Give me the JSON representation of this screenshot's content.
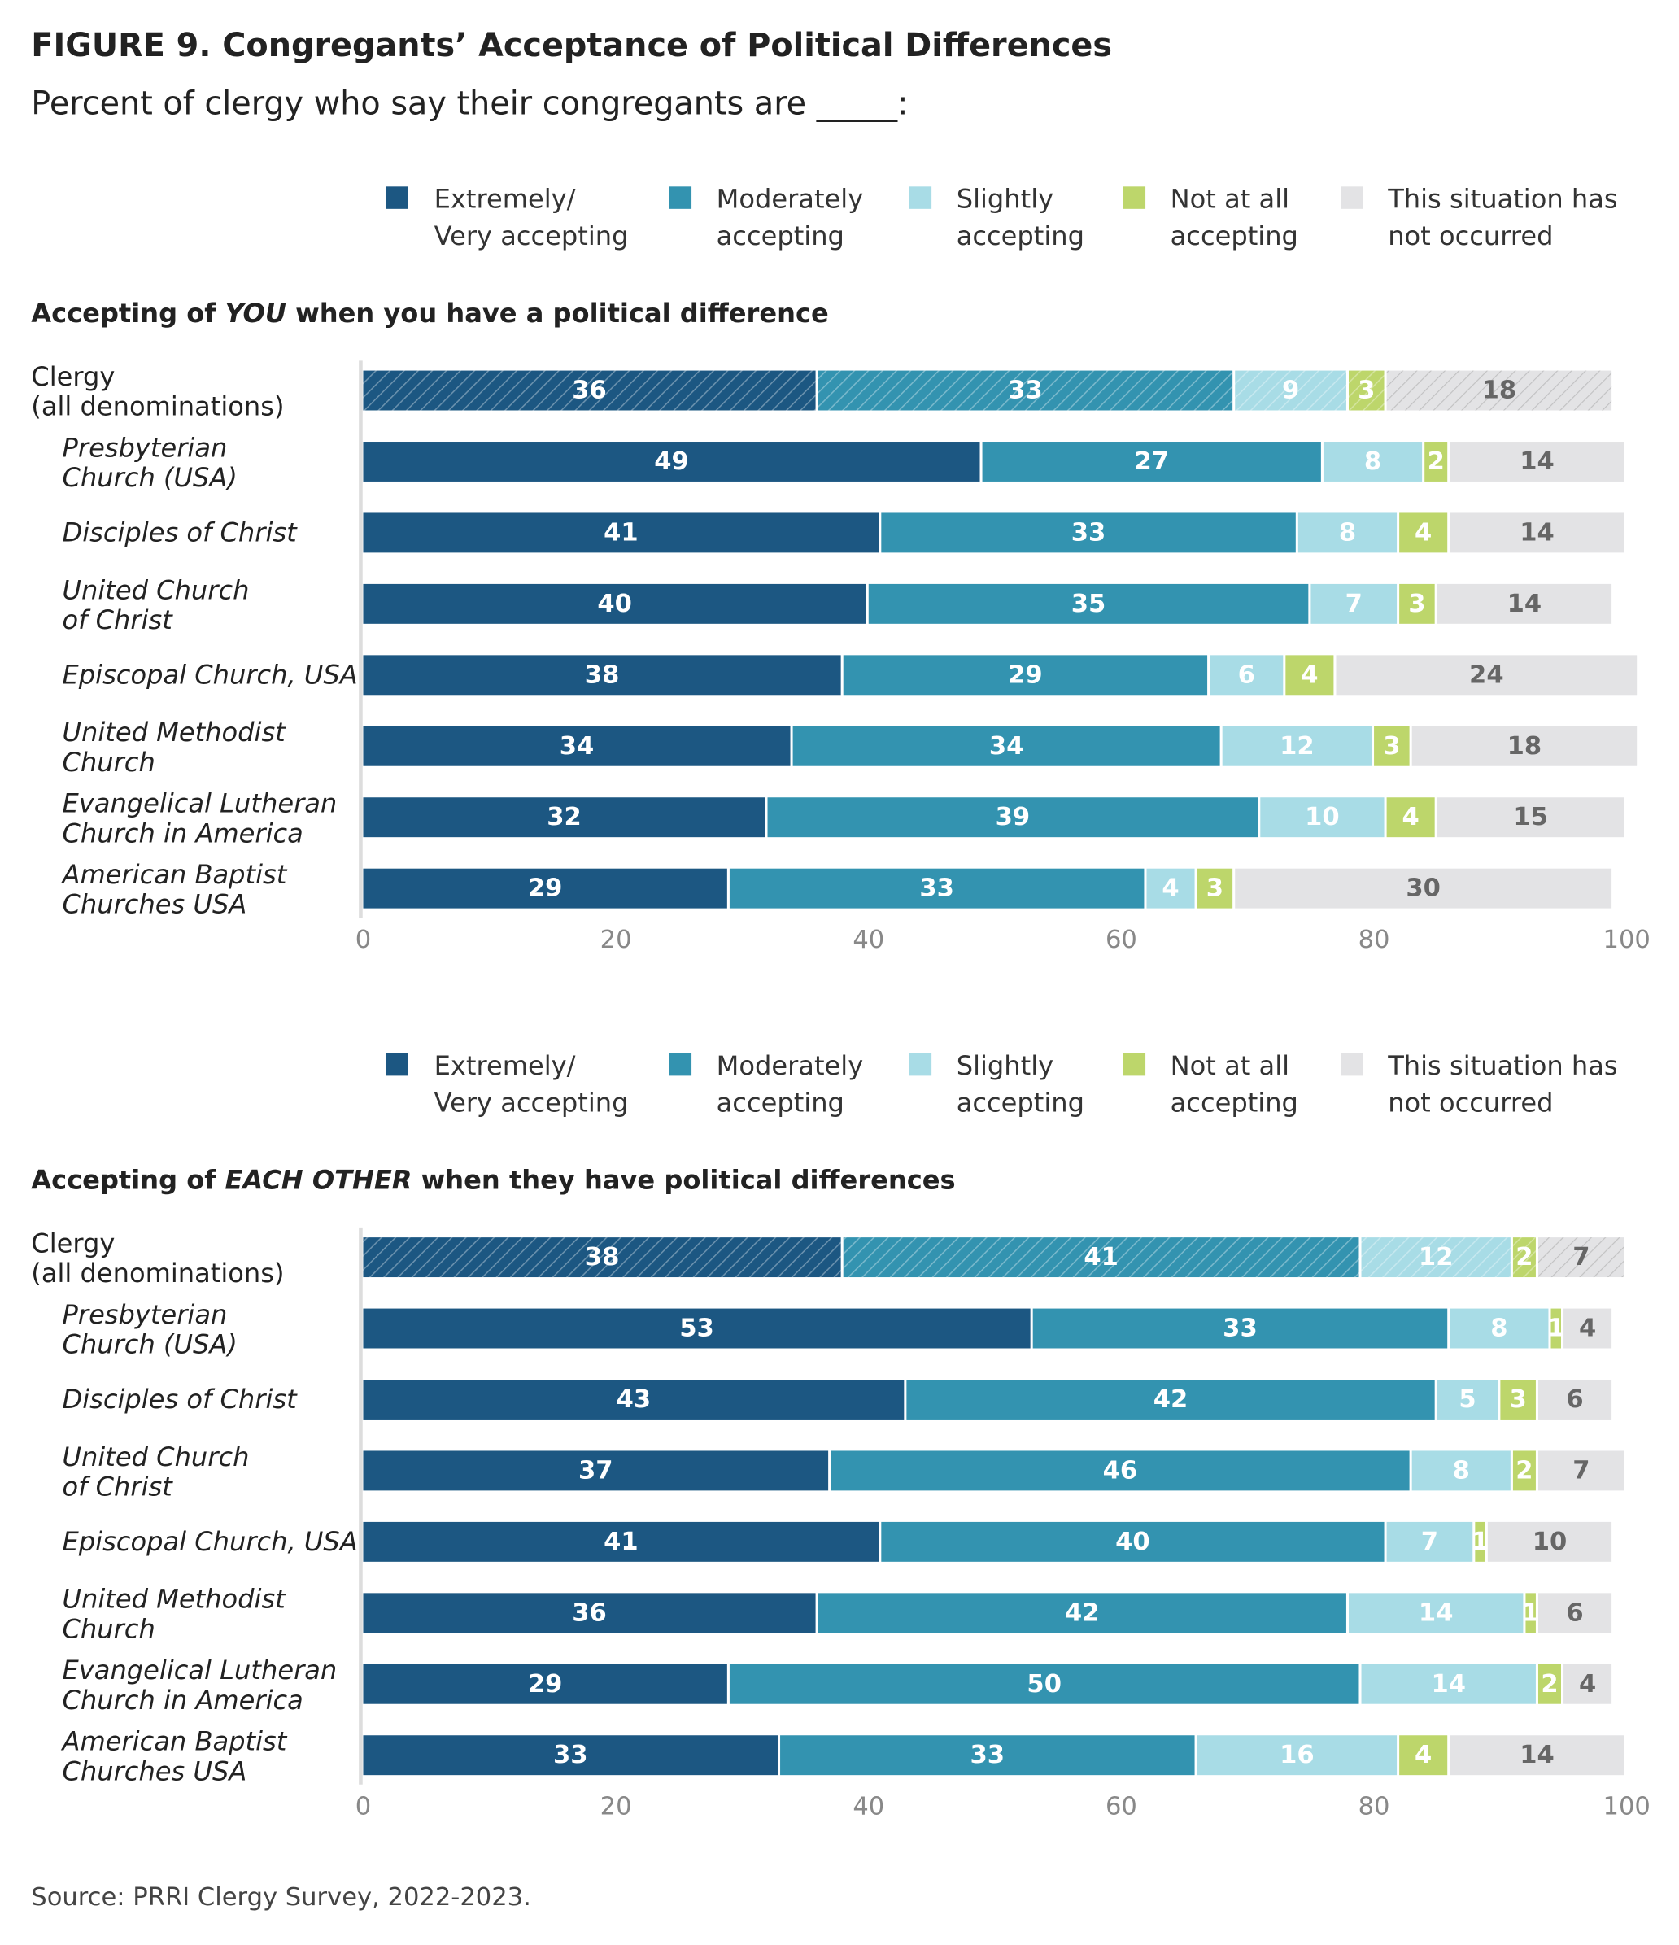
{
  "title": "FIGURE 9.  Congregants’ Acceptance of Political Differences",
  "subtitle": "Percent of clergy who say their congregants are _____:",
  "source": "Source: PRRI Clergy Survey, 2022-2023.",
  "colors": {
    "extremely": "#1c5782",
    "moderately": "#3393b0",
    "slightly": "#a8dce6",
    "not_at_all": "#bdd66b",
    "not_occurred": "#e3e3e5"
  },
  "chart_data": [
    {
      "type": "bar",
      "orientation": "horizontal-stacked",
      "title": "Accepting of YOU when you have a political difference",
      "title_parts": [
        "Accepting of ",
        "YOU",
        " when you have a political difference"
      ],
      "legend": [
        [
          "Extremely/",
          "Very accepting"
        ],
        [
          "Moderately",
          "accepting"
        ],
        [
          "Slightly",
          "accepting"
        ],
        [
          "Not at all",
          "accepting"
        ],
        [
          "This situation has",
          "not occurred"
        ]
      ],
      "categories": [
        [
          "Clergy",
          "(all denominations)"
        ],
        [
          "Presbyterian",
          "Church (USA)"
        ],
        [
          "Disciples of Christ"
        ],
        [
          "United Church",
          "of Christ"
        ],
        [
          "Episcopal Church, USA"
        ],
        [
          "United Methodist",
          "Church"
        ],
        [
          "Evangelical Lutheran",
          "Church in America"
        ],
        [
          "American Baptist",
          "Churches USA"
        ]
      ],
      "series": [
        {
          "name": "Extremely/Very accepting",
          "values": [
            36,
            49,
            41,
            40,
            38,
            34,
            32,
            29
          ]
        },
        {
          "name": "Moderately accepting",
          "values": [
            33,
            27,
            33,
            35,
            29,
            34,
            39,
            33
          ]
        },
        {
          "name": "Slightly accepting",
          "values": [
            9,
            8,
            8,
            7,
            6,
            12,
            10,
            4
          ]
        },
        {
          "name": "Not at all accepting",
          "values": [
            3,
            2,
            4,
            3,
            4,
            3,
            4,
            3
          ]
        },
        {
          "name": "This situation has not occurred",
          "values": [
            18,
            14,
            14,
            14,
            24,
            18,
            15,
            30
          ]
        }
      ],
      "xlim": [
        0,
        100
      ],
      "xticks": [
        "0",
        "20",
        "40",
        "60",
        "80",
        "100"
      ]
    },
    {
      "type": "bar",
      "orientation": "horizontal-stacked",
      "title": "Accepting of EACH OTHER when they have political differences",
      "title_parts": [
        "Accepting of ",
        "EACH OTHER",
        " when they have political differences"
      ],
      "legend": [
        [
          "Extremely/",
          "Very accepting"
        ],
        [
          "Moderately",
          "accepting"
        ],
        [
          "Slightly",
          "accepting"
        ],
        [
          "Not at all",
          "accepting"
        ],
        [
          "This situation has",
          "not occurred"
        ]
      ],
      "categories": [
        [
          "Clergy",
          "(all denominations)"
        ],
        [
          "Presbyterian",
          "Church (USA)"
        ],
        [
          "Disciples of Christ"
        ],
        [
          "United Church",
          "of Christ"
        ],
        [
          "Episcopal Church, USA"
        ],
        [
          "United Methodist",
          "Church"
        ],
        [
          "Evangelical Lutheran",
          "Church in America"
        ],
        [
          "American Baptist",
          "Churches USA"
        ]
      ],
      "series": [
        {
          "name": "Extremely/Very accepting",
          "values": [
            38,
            53,
            43,
            37,
            41,
            36,
            29,
            33
          ]
        },
        {
          "name": "Moderately accepting",
          "values": [
            41,
            33,
            42,
            46,
            40,
            42,
            50,
            33
          ]
        },
        {
          "name": "Slightly accepting",
          "values": [
            12,
            8,
            5,
            8,
            7,
            14,
            14,
            16
          ]
        },
        {
          "name": "Not at all accepting",
          "values": [
            2,
            1,
            3,
            2,
            1,
            1,
            2,
            4
          ]
        },
        {
          "name": "This situation has not occurred",
          "values": [
            7,
            4,
            6,
            7,
            10,
            6,
            4,
            14
          ]
        }
      ],
      "xlim": [
        0,
        100
      ],
      "xticks": [
        "0",
        "20",
        "40",
        "60",
        "80",
        "100"
      ]
    }
  ]
}
